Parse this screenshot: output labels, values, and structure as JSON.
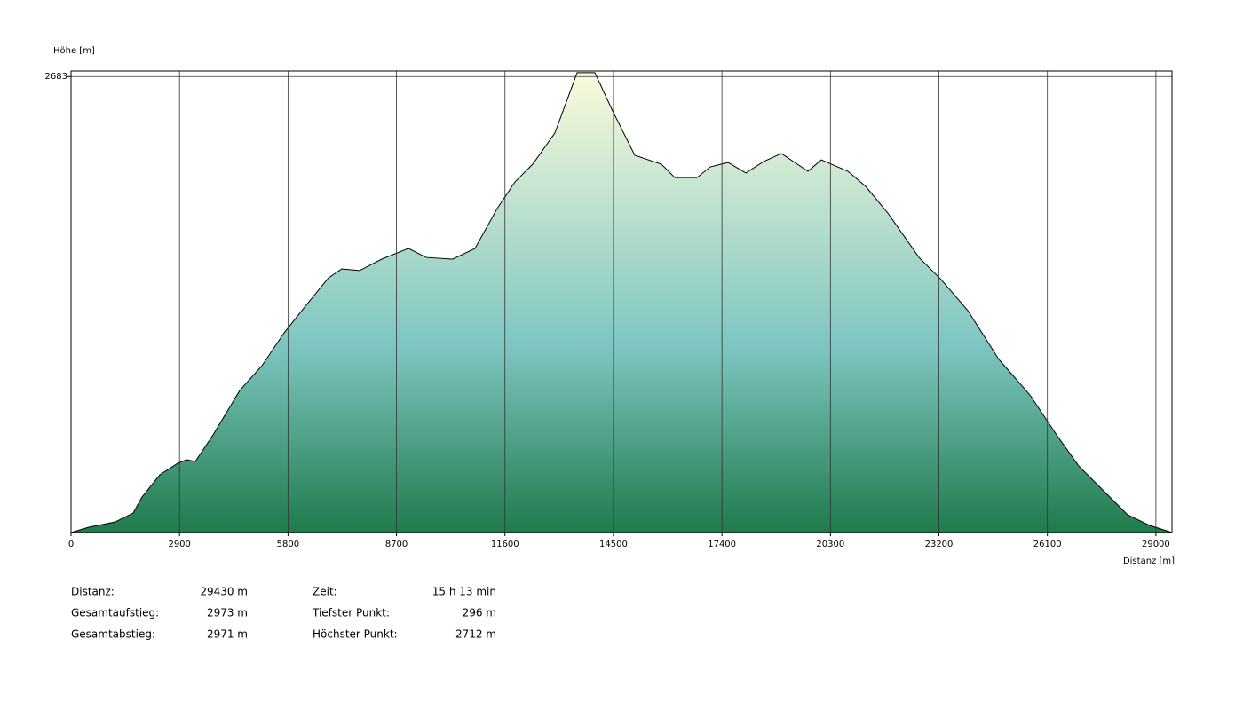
{
  "chart_data": {
    "type": "area",
    "ylabel": "Höhe [m]",
    "xlabel": "Distanz [m]",
    "x": [
      0,
      475,
      1187,
      1661,
      1898,
      2373,
      2848,
      3085,
      3323,
      3797,
      4509,
      5102,
      5696,
      6170,
      6882,
      7238,
      7713,
      8307,
      9019,
      9493,
      10205,
      10799,
      11392,
      11867,
      12341,
      12934,
      13528,
      14003,
      14478,
      15071,
      15783,
      16139,
      16733,
      17089,
      17564,
      18039,
      18513,
      18988,
      19700,
      20056,
      20768,
      21243,
      21836,
      22667,
      23260,
      23972,
      24803,
      25633,
      26345,
      26938,
      27650,
      28243,
      28836,
      29430
    ],
    "values": [
      296,
      324,
      352,
      398,
      482,
      598,
      658,
      677,
      668,
      807,
      1039,
      1169,
      1341,
      1458,
      1629,
      1676,
      1667,
      1727,
      1783,
      1736,
      1727,
      1783,
      1992,
      2131,
      2224,
      2387,
      2703,
      2703,
      2503,
      2271,
      2224,
      2154,
      2154,
      2210,
      2233,
      2178,
      2238,
      2280,
      2187,
      2247,
      2187,
      2108,
      1968,
      1736,
      1620,
      1458,
      1202,
      1016,
      807,
      644,
      505,
      389,
      333,
      296
    ],
    "xlim": [
      0,
      29430
    ],
    "xticks": [
      0,
      2900,
      5800,
      8700,
      11600,
      14500,
      17400,
      20300,
      23200,
      26100,
      29000
    ],
    "ylim": [
      296,
      2712
    ],
    "yticks": [
      2683
    ],
    "grid": true,
    "line_color": "#000000",
    "fill_gradient": [
      "#fbfbdc",
      "#7cc5c1",
      "#1f7b4b"
    ]
  },
  "stats": [
    {
      "label": "Distanz:",
      "value": "29430 m"
    },
    {
      "label": "Gesamtaufstieg:",
      "value": "2973 m"
    },
    {
      "label": "Gesamtabstieg:",
      "value": "2971 m"
    },
    {
      "label": "Zeit:",
      "value": "15 h 13 min"
    },
    {
      "label": "Tiefster Punkt:",
      "value": "296 m"
    },
    {
      "label": "Höchster Punkt:",
      "value": "2712 m"
    }
  ]
}
